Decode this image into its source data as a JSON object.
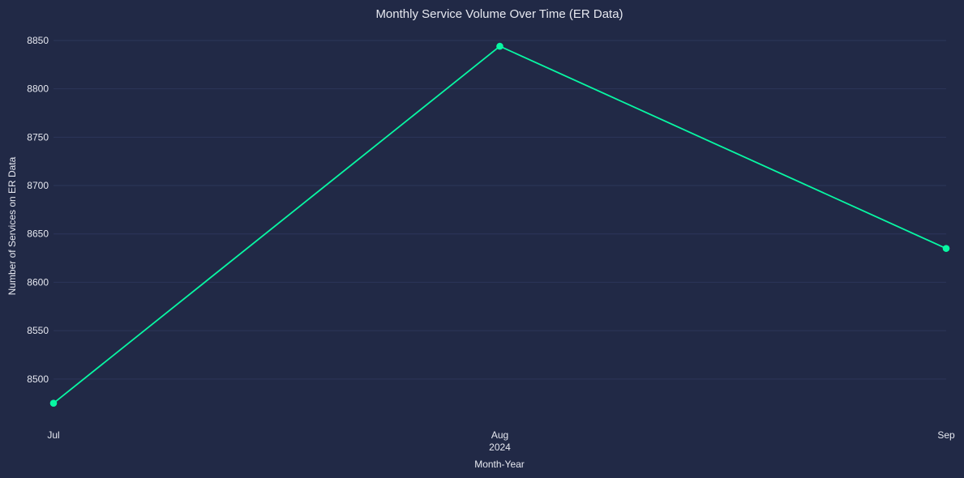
{
  "chart_data": {
    "type": "line",
    "title": "Monthly Service Volume Over Time (ER Data)",
    "xlabel": "Month-Year",
    "ylabel": "Number of Services on ER Data",
    "x": [
      "Jul",
      "Aug",
      "Sep"
    ],
    "x_sublabels": [
      "",
      "2024",
      ""
    ],
    "series": [
      {
        "values": [
          8475,
          8844,
          8635
        ],
        "color": "#08f7a3"
      }
    ],
    "ylim": [
      8463,
      8860
    ],
    "yticks": [
      8500,
      8550,
      8600,
      8650,
      8700,
      8750,
      8800,
      8850
    ],
    "grid": true,
    "background": "#212946",
    "grid_color": "#2c365a",
    "text_color": "#e6e8f0"
  }
}
